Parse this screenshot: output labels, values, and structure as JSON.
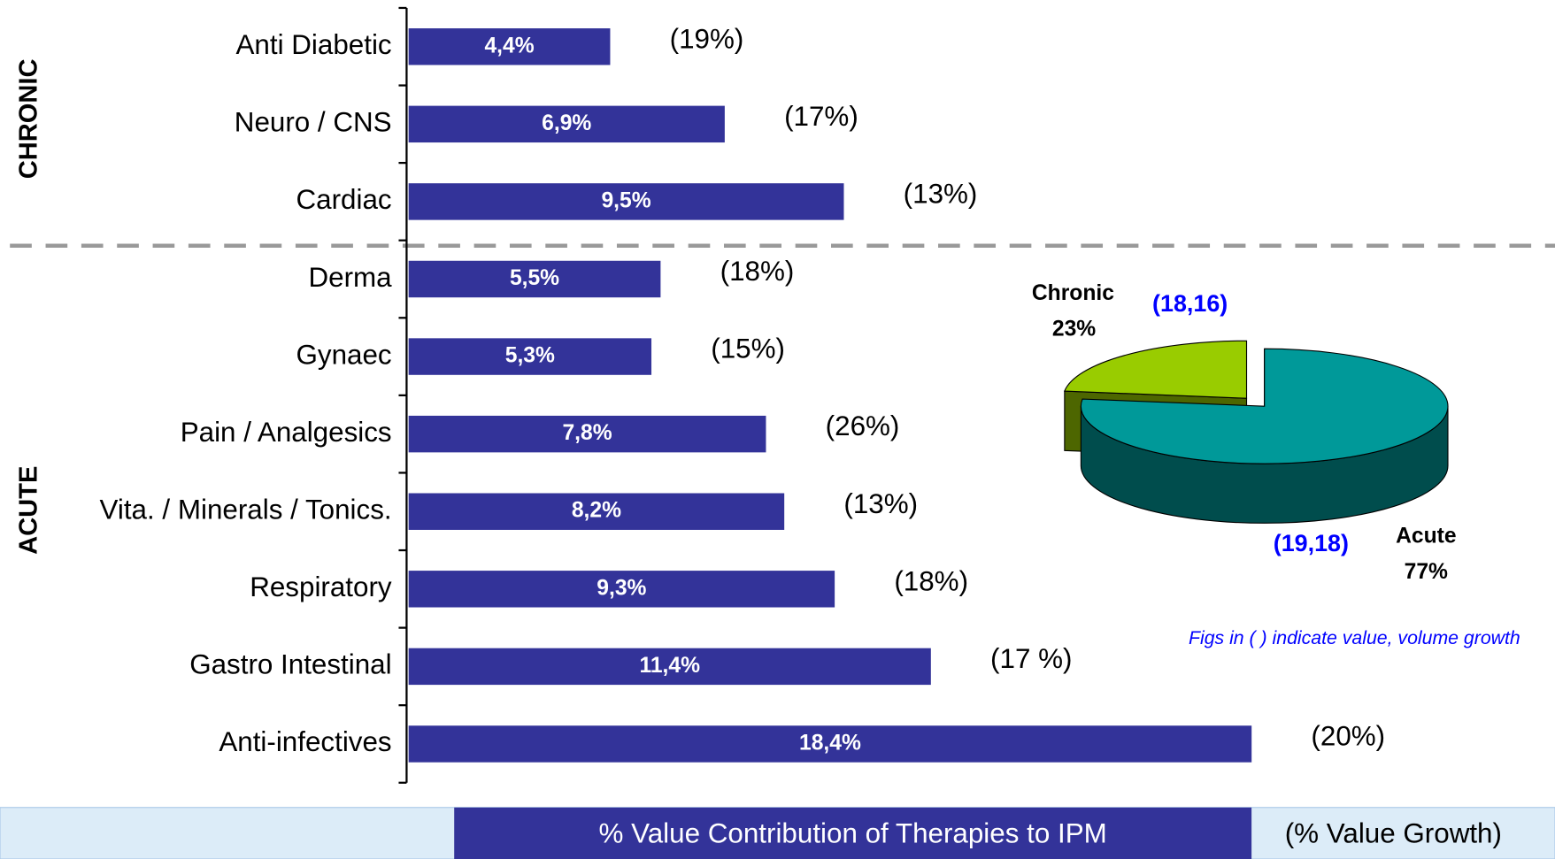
{
  "chart_data": [
    {
      "type": "bar",
      "orientation": "horizontal",
      "group_labels": [
        "CHRONIC",
        "ACUTE"
      ],
      "categories": [
        "Anti Diabetic",
        "Neuro / CNS",
        "Cardiac",
        "Derma",
        "Gynaec",
        "Pain / Analgesics",
        "Vita. / Minerals / Tonics.",
        "Respiratory",
        "Gastro Intestinal",
        "Anti-infectives"
      ],
      "series": [
        {
          "name": "% Value Contribution of Therapies to IPM",
          "color": "#333399",
          "values": [
            4.4,
            6.9,
            9.5,
            5.5,
            5.3,
            7.8,
            8.2,
            9.3,
            11.4,
            18.4
          ],
          "value_labels": [
            "4,4%",
            "6,9%",
            "9,5%",
            "5,5%",
            "5,3%",
            "7,8%",
            "8,2%",
            "9,3%",
            "11,4%",
            "18,4%"
          ]
        },
        {
          "name": "(% Value Growth)",
          "values": [
            19,
            17,
            13,
            18,
            15,
            26,
            13,
            18,
            17,
            20
          ],
          "value_labels": [
            "(19%)",
            "(17%)",
            "(13%)",
            "(18%)",
            "(15%)",
            "(26%)",
            "(13%)",
            "(18%)",
            "(17 %)",
            "(20%)"
          ]
        }
      ]
    },
    {
      "type": "pie",
      "categories": [
        "Chronic",
        "Acute"
      ],
      "values": [
        23,
        77
      ],
      "value_labels": [
        "23%",
        "77%"
      ],
      "colors": [
        "#99cc00",
        "#009999"
      ],
      "annotations": [
        "(18,16)",
        "(19,18)"
      ],
      "note": "Figs in ( ) indicate value, volume growth"
    }
  ]
}
